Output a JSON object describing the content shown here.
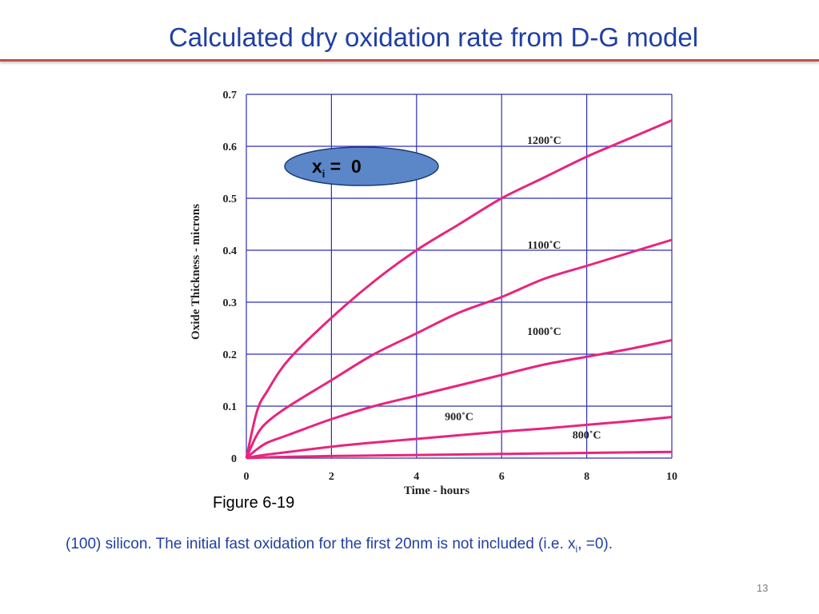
{
  "slide": {
    "title": "Calculated dry oxidation rate from D-G model",
    "figure_label": "Figure 6-19",
    "caption_part1": "(100) silicon. The initial fast oxidation for the first  20nm is not included (i.e. x",
    "caption_sub": "i",
    "caption_part2": ",  =0).",
    "page_number": "13"
  },
  "colors": {
    "title": "#1f3fa5",
    "curve": "#e8247c",
    "grid": "#2e2eb8",
    "badge": "#5b87c8",
    "rule": "#c0504d"
  },
  "chart_data": {
    "type": "line",
    "title": "",
    "xlabel": "Time - hours",
    "ylabel": "Oxide Thickness - microns",
    "xlim": [
      0,
      10
    ],
    "ylim": [
      0,
      0.7
    ],
    "xticks": [
      "0",
      "2",
      "4",
      "6",
      "8",
      "10"
    ],
    "yticks": [
      "0",
      "0.1",
      "0.2",
      "0.3",
      "0.4",
      "0.5",
      "0.6",
      "0.7"
    ],
    "grid": true,
    "annotation": {
      "main": "x",
      "sub": "i",
      "rest": " =  0"
    },
    "x": [
      0,
      0.25,
      0.5,
      1,
      2,
      3,
      4,
      5,
      6,
      7,
      8,
      9,
      10
    ],
    "series": [
      {
        "name": "1200˚C",
        "values": [
          0,
          0.09,
          0.13,
          0.19,
          0.27,
          0.34,
          0.4,
          0.45,
          0.5,
          0.54,
          0.58,
          0.615,
          0.65
        ]
      },
      {
        "name": "1100˚C",
        "values": [
          0,
          0.045,
          0.07,
          0.1,
          0.15,
          0.2,
          0.24,
          0.28,
          0.31,
          0.345,
          0.37,
          0.395,
          0.42
        ]
      },
      {
        "name": "1000˚C",
        "values": [
          0,
          0.017,
          0.03,
          0.045,
          0.075,
          0.1,
          0.12,
          0.14,
          0.16,
          0.18,
          0.195,
          0.21,
          0.227
        ]
      },
      {
        "name": "900˚C",
        "values": [
          0,
          0.004,
          0.007,
          0.012,
          0.022,
          0.03,
          0.037,
          0.044,
          0.051,
          0.057,
          0.064,
          0.071,
          0.079
        ]
      },
      {
        "name": "800˚C",
        "values": [
          0,
          0.0008,
          0.0015,
          0.0025,
          0.004,
          0.005,
          0.006,
          0.007,
          0.008,
          0.009,
          0.01,
          0.011,
          0.012
        ]
      }
    ]
  }
}
